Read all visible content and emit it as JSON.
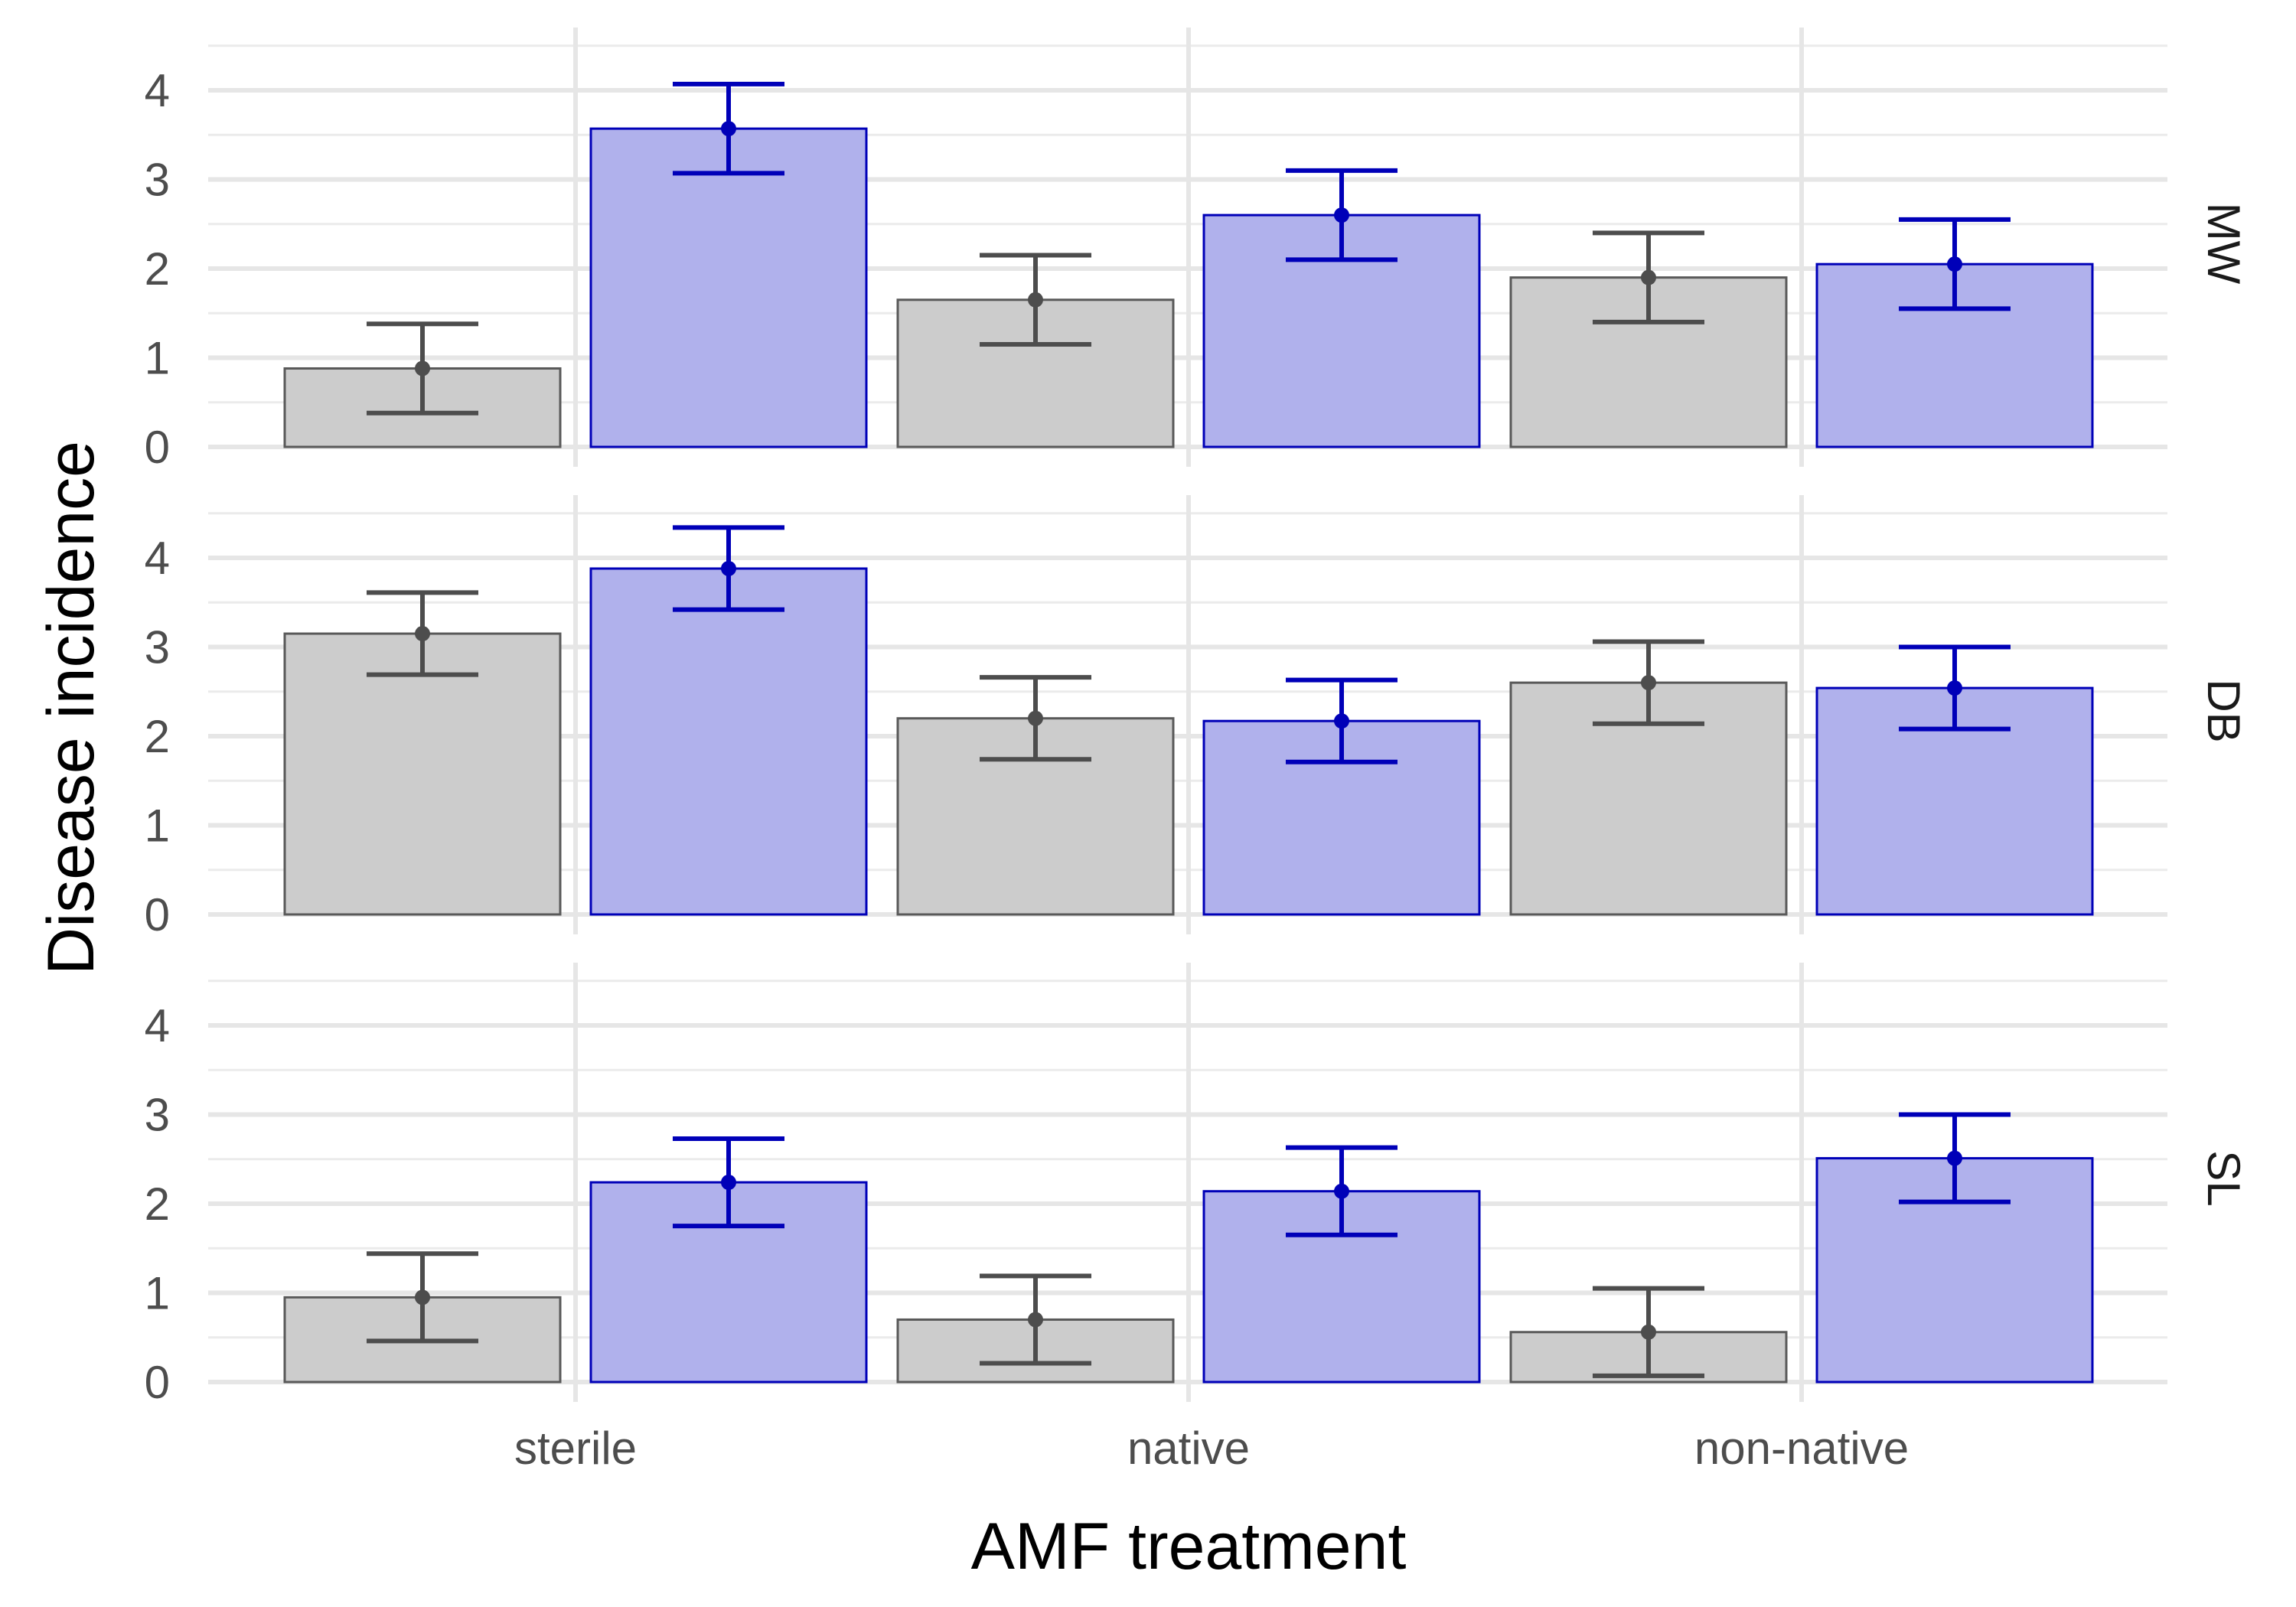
{
  "chart_data": {
    "type": "bar",
    "title": "",
    "xlabel": "AMF treatment",
    "ylabel": "Disease incidence",
    "categories": [
      "sterile",
      "native",
      "non-native"
    ],
    "ylim": [
      0,
      4.5
    ],
    "yticks": [
      0,
      1,
      2,
      3,
      4
    ],
    "grid": true,
    "legend": "none",
    "groups": [
      {
        "name": "grey",
        "color": "#cccccc",
        "stroke": "#595959",
        "error_color": "#4d4d4d"
      },
      {
        "name": "blue",
        "color": "#b0b1ec",
        "stroke": "#0000b8",
        "error_color": "#0000b8"
      }
    ],
    "panels": [
      {
        "label": "MW",
        "series": [
          {
            "values": [
              0.88,
              1.65,
              1.9
            ],
            "error": [
              0.5,
              0.5,
              0.5
            ]
          },
          {
            "values": [
              3.57,
              2.6,
              2.05
            ],
            "error": [
              0.5,
              0.5,
              0.5
            ]
          }
        ]
      },
      {
        "label": "DB",
        "series": [
          {
            "values": [
              3.15,
              2.2,
              2.6
            ],
            "error": [
              0.46,
              0.46,
              0.46
            ]
          },
          {
            "values": [
              3.88,
              2.17,
              2.54
            ],
            "error": [
              0.46,
              0.46,
              0.46
            ]
          }
        ]
      },
      {
        "label": "SL",
        "series": [
          {
            "values": [
              0.95,
              0.7,
              0.56
            ],
            "error": [
              0.49,
              0.49,
              0.49
            ]
          },
          {
            "values": [
              2.24,
              2.14,
              2.51
            ],
            "error": [
              0.49,
              0.49,
              0.49
            ]
          }
        ]
      }
    ]
  }
}
